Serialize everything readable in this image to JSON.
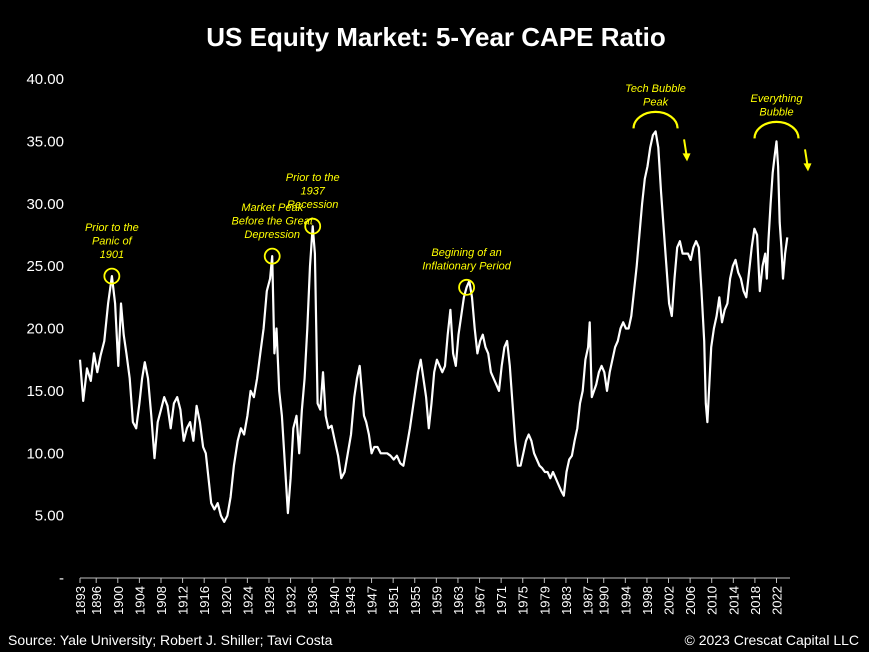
{
  "chart_data": {
    "type": "line",
    "title": "US Equity Market: 5-Year CAPE Ratio",
    "xlabel": "",
    "ylabel": "",
    "xlim": [
      1893,
      2024.5
    ],
    "ylim": [
      0,
      40
    ],
    "ytick_labels": [
      "-",
      "5.00",
      "10.00",
      "15.00",
      "20.00",
      "25.00",
      "30.00",
      "35.00",
      "40.00"
    ],
    "xtick_labels": [
      "1893",
      "1896",
      "1900",
      "1904",
      "1908",
      "1912",
      "1916",
      "1920",
      "1924",
      "1928",
      "1932",
      "1936",
      "1940",
      "1943",
      "1947",
      "1951",
      "1955",
      "1959",
      "1963",
      "1967",
      "1971",
      "1975",
      "1979",
      "1983",
      "1987",
      "1990",
      "1994",
      "1998",
      "2002",
      "2006",
      "2010",
      "2014",
      "2018",
      "2022"
    ],
    "series": [
      {
        "name": "5-Year CAPE Ratio",
        "color": "#ffffff",
        "points": [
          [
            1893.0,
            17.5
          ],
          [
            1893.6,
            14.2
          ],
          [
            1894.3,
            16.8
          ],
          [
            1895.0,
            15.8
          ],
          [
            1895.6,
            18.0
          ],
          [
            1896.2,
            16.5
          ],
          [
            1896.8,
            17.8
          ],
          [
            1897.5,
            19.0
          ],
          [
            1898.2,
            22.0
          ],
          [
            1898.9,
            24.2
          ],
          [
            1899.5,
            22.0
          ],
          [
            1900.1,
            17.0
          ],
          [
            1900.6,
            22.0
          ],
          [
            1901.1,
            19.5
          ],
          [
            1901.6,
            18.0
          ],
          [
            1902.2,
            16.0
          ],
          [
            1902.8,
            12.5
          ],
          [
            1903.4,
            12.0
          ],
          [
            1904.0,
            14.0
          ],
          [
            1904.5,
            16.0
          ],
          [
            1905.0,
            17.3
          ],
          [
            1905.6,
            16.0
          ],
          [
            1906.2,
            13.0
          ],
          [
            1906.8,
            9.6
          ],
          [
            1907.4,
            12.5
          ],
          [
            1908.0,
            13.5
          ],
          [
            1908.6,
            14.5
          ],
          [
            1909.2,
            13.8
          ],
          [
            1909.8,
            12.0
          ],
          [
            1910.4,
            14.0
          ],
          [
            1911.0,
            14.5
          ],
          [
            1911.6,
            13.5
          ],
          [
            1912.2,
            11.0
          ],
          [
            1912.8,
            12.0
          ],
          [
            1913.4,
            12.5
          ],
          [
            1914.0,
            11.0
          ],
          [
            1914.6,
            13.8
          ],
          [
            1915.2,
            12.5
          ],
          [
            1915.8,
            10.5
          ],
          [
            1916.3,
            10.0
          ],
          [
            1916.8,
            8.0
          ],
          [
            1917.3,
            6.0
          ],
          [
            1917.9,
            5.5
          ],
          [
            1918.5,
            6.0
          ],
          [
            1919.1,
            5.0
          ],
          [
            1919.7,
            4.5
          ],
          [
            1920.3,
            5.0
          ],
          [
            1920.9,
            6.5
          ],
          [
            1921.5,
            9.0
          ],
          [
            1922.2,
            11.0
          ],
          [
            1922.8,
            12.0
          ],
          [
            1923.4,
            11.5
          ],
          [
            1924.0,
            13.0
          ],
          [
            1924.6,
            15.0
          ],
          [
            1925.2,
            14.5
          ],
          [
            1925.8,
            16.0
          ],
          [
            1926.4,
            18.0
          ],
          [
            1927.0,
            20.0
          ],
          [
            1927.6,
            23.0
          ],
          [
            1928.2,
            24.0
          ],
          [
            1928.6,
            25.8
          ],
          [
            1929.0,
            18.0
          ],
          [
            1929.4,
            20.0
          ],
          [
            1929.9,
            15.0
          ],
          [
            1930.4,
            13.0
          ],
          [
            1930.9,
            9.5
          ],
          [
            1931.5,
            5.2
          ],
          [
            1932.0,
            8.0
          ],
          [
            1932.5,
            12.0
          ],
          [
            1933.1,
            13.0
          ],
          [
            1933.6,
            10.0
          ],
          [
            1934.1,
            13.5
          ],
          [
            1934.6,
            16.0
          ],
          [
            1935.1,
            20.0
          ],
          [
            1935.6,
            25.0
          ],
          [
            1936.1,
            28.2
          ],
          [
            1936.5,
            26.0
          ],
          [
            1937.0,
            14.0
          ],
          [
            1937.5,
            13.5
          ],
          [
            1938.0,
            16.5
          ],
          [
            1938.5,
            13.0
          ],
          [
            1939.0,
            12.0
          ],
          [
            1939.6,
            12.2
          ],
          [
            1940.2,
            11.0
          ],
          [
            1940.8,
            9.8
          ],
          [
            1941.4,
            8.0
          ],
          [
            1942.0,
            8.5
          ],
          [
            1942.6,
            10.0
          ],
          [
            1943.2,
            11.5
          ],
          [
            1943.8,
            14.5
          ],
          [
            1944.3,
            16.0
          ],
          [
            1944.8,
            17.0
          ],
          [
            1945.2,
            15.0
          ],
          [
            1945.6,
            13.0
          ],
          [
            1946.0,
            12.5
          ],
          [
            1946.5,
            11.5
          ],
          [
            1947.0,
            10.0
          ],
          [
            1947.5,
            10.5
          ],
          [
            1948.1,
            10.5
          ],
          [
            1948.7,
            10.0
          ],
          [
            1949.3,
            10.0
          ],
          [
            1949.9,
            10.0
          ],
          [
            1950.5,
            9.8
          ],
          [
            1951.1,
            9.5
          ],
          [
            1951.7,
            9.8
          ],
          [
            1952.3,
            9.2
          ],
          [
            1952.9,
            9.0
          ],
          [
            1953.5,
            10.5
          ],
          [
            1954.1,
            12.0
          ],
          [
            1954.6,
            13.5
          ],
          [
            1955.1,
            15.0
          ],
          [
            1955.6,
            16.5
          ],
          [
            1956.1,
            17.5
          ],
          [
            1956.6,
            16.0
          ],
          [
            1957.1,
            14.5
          ],
          [
            1957.6,
            12.0
          ],
          [
            1958.1,
            14.0
          ],
          [
            1958.6,
            16.5
          ],
          [
            1959.1,
            17.5
          ],
          [
            1959.6,
            17.0
          ],
          [
            1960.1,
            16.5
          ],
          [
            1960.6,
            17.0
          ],
          [
            1961.1,
            19.5
          ],
          [
            1961.6,
            21.5
          ],
          [
            1962.1,
            18.0
          ],
          [
            1962.6,
            17.0
          ],
          [
            1963.1,
            19.5
          ],
          [
            1963.6,
            21.0
          ],
          [
            1964.1,
            22.5
          ],
          [
            1964.6,
            23.3
          ],
          [
            1965.1,
            23.8
          ],
          [
            1965.6,
            22.5
          ],
          [
            1966.1,
            20.0
          ],
          [
            1966.6,
            18.0
          ],
          [
            1967.1,
            19.0
          ],
          [
            1967.6,
            19.5
          ],
          [
            1968.1,
            18.5
          ],
          [
            1968.6,
            18.0
          ],
          [
            1969.1,
            16.5
          ],
          [
            1969.6,
            16.0
          ],
          [
            1970.1,
            15.5
          ],
          [
            1970.6,
            15.0
          ],
          [
            1971.1,
            17.0
          ],
          [
            1971.6,
            18.5
          ],
          [
            1972.1,
            19.0
          ],
          [
            1972.6,
            17.0
          ],
          [
            1973.1,
            14.0
          ],
          [
            1973.6,
            11.0
          ],
          [
            1974.1,
            9.0
          ],
          [
            1974.6,
            9.0
          ],
          [
            1975.1,
            10.0
          ],
          [
            1975.6,
            11.0
          ],
          [
            1976.1,
            11.5
          ],
          [
            1976.6,
            11.0
          ],
          [
            1977.1,
            10.0
          ],
          [
            1977.6,
            9.5
          ],
          [
            1978.1,
            9.0
          ],
          [
            1978.6,
            8.8
          ],
          [
            1979.1,
            8.5
          ],
          [
            1979.6,
            8.5
          ],
          [
            1980.1,
            8.0
          ],
          [
            1980.6,
            8.5
          ],
          [
            1981.1,
            8.0
          ],
          [
            1981.6,
            7.5
          ],
          [
            1982.1,
            7.0
          ],
          [
            1982.6,
            6.6
          ],
          [
            1983.1,
            8.5
          ],
          [
            1983.6,
            9.5
          ],
          [
            1984.1,
            9.8
          ],
          [
            1984.6,
            11.0
          ],
          [
            1985.1,
            12.0
          ],
          [
            1985.6,
            14.0
          ],
          [
            1986.1,
            15.0
          ],
          [
            1986.6,
            17.5
          ],
          [
            1987.1,
            18.5
          ],
          [
            1987.4,
            20.5
          ],
          [
            1987.8,
            14.5
          ],
          [
            1988.2,
            15.0
          ],
          [
            1988.6,
            15.5
          ],
          [
            1989.1,
            16.5
          ],
          [
            1989.6,
            17.0
          ],
          [
            1990.1,
            16.5
          ],
          [
            1990.6,
            15.0
          ],
          [
            1991.1,
            16.5
          ],
          [
            1991.6,
            17.5
          ],
          [
            1992.1,
            18.5
          ],
          [
            1992.6,
            19.0
          ],
          [
            1993.1,
            20.0
          ],
          [
            1993.6,
            20.5
          ],
          [
            1994.1,
            20.0
          ],
          [
            1994.6,
            20.0
          ],
          [
            1995.1,
            21.0
          ],
          [
            1995.6,
            23.0
          ],
          [
            1996.1,
            25.0
          ],
          [
            1996.6,
            27.5
          ],
          [
            1997.1,
            30.0
          ],
          [
            1997.6,
            32.0
          ],
          [
            1998.1,
            33.0
          ],
          [
            1998.6,
            34.5
          ],
          [
            1999.1,
            35.5
          ],
          [
            1999.6,
            35.8
          ],
          [
            2000.1,
            34.5
          ],
          [
            2000.6,
            31.0
          ],
          [
            2001.1,
            28.0
          ],
          [
            2001.6,
            25.0
          ],
          [
            2002.1,
            22.0
          ],
          [
            2002.6,
            21.0
          ],
          [
            2003.1,
            24.0
          ],
          [
            2003.6,
            26.5
          ],
          [
            2004.1,
            27.0
          ],
          [
            2004.6,
            26.0
          ],
          [
            2005.1,
            26.0
          ],
          [
            2005.6,
            26.0
          ],
          [
            2006.1,
            25.5
          ],
          [
            2006.6,
            26.5
          ],
          [
            2007.1,
            27.0
          ],
          [
            2007.6,
            26.5
          ],
          [
            2008.1,
            23.0
          ],
          [
            2008.6,
            19.0
          ],
          [
            2008.9,
            14.0
          ],
          [
            2009.2,
            12.5
          ],
          [
            2009.5,
            15.0
          ],
          [
            2009.9,
            18.5
          ],
          [
            2010.4,
            20.0
          ],
          [
            2010.9,
            21.0
          ],
          [
            2011.4,
            22.5
          ],
          [
            2011.9,
            20.5
          ],
          [
            2012.4,
            21.5
          ],
          [
            2012.9,
            22.0
          ],
          [
            2013.4,
            24.0
          ],
          [
            2013.9,
            25.0
          ],
          [
            2014.4,
            25.5
          ],
          [
            2014.9,
            24.5
          ],
          [
            2015.4,
            24.0
          ],
          [
            2015.9,
            23.0
          ],
          [
            2016.4,
            22.5
          ],
          [
            2016.9,
            24.5
          ],
          [
            2017.4,
            26.5
          ],
          [
            2017.9,
            28.0
          ],
          [
            2018.4,
            27.5
          ],
          [
            2018.9,
            23.0
          ],
          [
            2019.4,
            25.0
          ],
          [
            2019.9,
            26.0
          ],
          [
            2020.2,
            24.0
          ],
          [
            2020.5,
            27.0
          ],
          [
            2020.9,
            30.0
          ],
          [
            2021.3,
            32.5
          ],
          [
            2021.7,
            34.0
          ],
          [
            2022.0,
            35.0
          ],
          [
            2022.3,
            33.0
          ],
          [
            2022.6,
            28.5
          ],
          [
            2022.9,
            26.5
          ],
          [
            2023.2,
            24.0
          ],
          [
            2023.6,
            26.0
          ],
          [
            2024.0,
            27.3
          ]
        ]
      }
    ],
    "annotations": [
      {
        "lines": [
          "Prior to the",
          "Panic of",
          "1901"
        ],
        "x": 1898.9,
        "y": 24.2,
        "marker": "circle"
      },
      {
        "lines": [
          "Market Peak",
          "Before the Great",
          "Depression"
        ],
        "x": 1928.6,
        "y": 25.8,
        "marker": "circle"
      },
      {
        "lines": [
          "Prior to the",
          "1937",
          "Recession"
        ],
        "x": 1936.1,
        "y": 28.2,
        "marker": "circle"
      },
      {
        "lines": [
          "Begining of an",
          "Inflationary Period"
        ],
        "x": 1964.6,
        "y": 23.3,
        "marker": "circle"
      },
      {
        "lines": [
          "Tech Bubble",
          "Peak"
        ],
        "x": 1999.6,
        "y": 35.8,
        "marker": "arc"
      },
      {
        "lines": [
          "Everything",
          "Bubble"
        ],
        "x": 2022.0,
        "y": 35.0,
        "marker": "arc"
      }
    ],
    "annotation_color": "#ffff00",
    "grid": false
  },
  "footer": {
    "source": "Source: Yale University; Robert J. Shiller; Tavi Costa",
    "copyright": "© 2023 Crescat Capital LLC"
  }
}
